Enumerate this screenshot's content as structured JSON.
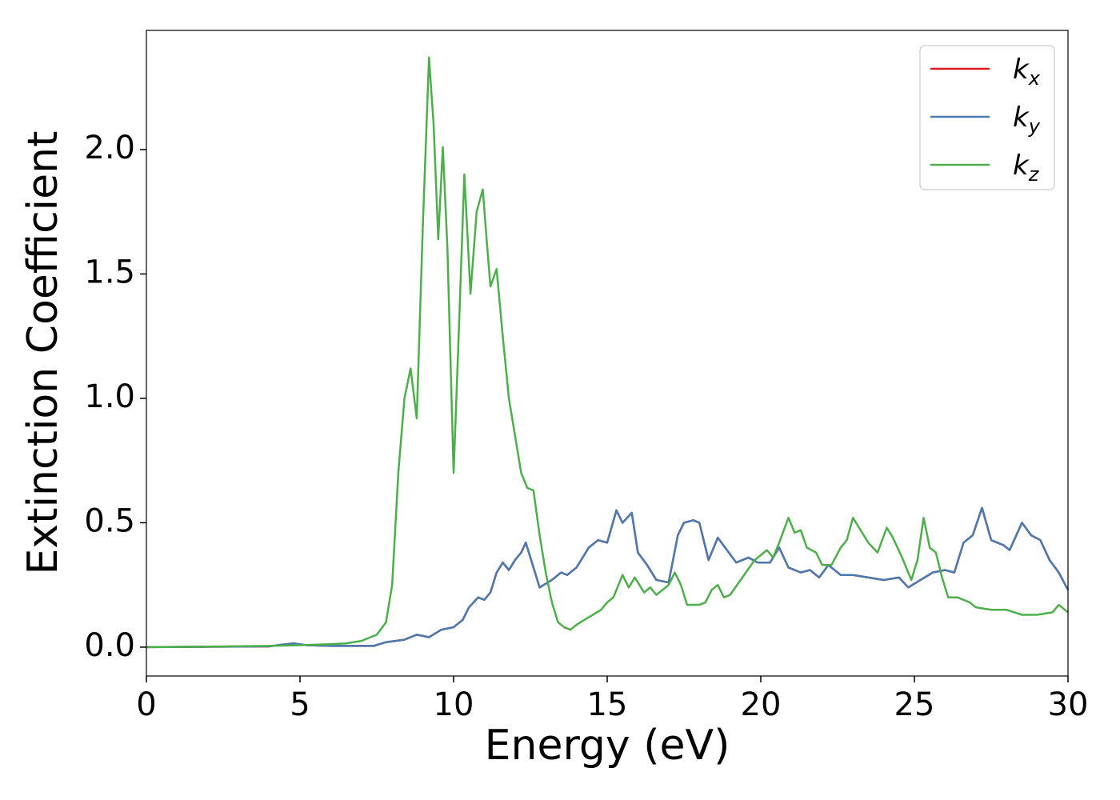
{
  "chart_data": {
    "type": "line",
    "x_label": "Energy (eV)",
    "y_label": "Extinction Coefficient",
    "xlim": [
      0,
      30
    ],
    "ylim": [
      -0.116,
      2.479
    ],
    "xticks": [
      0,
      5,
      10,
      15,
      20,
      25,
      30
    ],
    "yticks": [
      {
        "value": 0,
        "label": "0.0"
      },
      {
        "value": 0.5,
        "label": "0.5"
      },
      {
        "value": 1,
        "label": "1.0"
      },
      {
        "value": 1.5,
        "label": "1.5"
      },
      {
        "value": 2,
        "label": "2.0"
      }
    ],
    "legend": "upper right",
    "series": [
      {
        "name": "kx",
        "color": "#e41a1c",
        "x": [
          0,
          4,
          4.4,
          4.8,
          5.2,
          6,
          7.4,
          7.8,
          8.4,
          8.8,
          9.2,
          9.6,
          10,
          10.3,
          10.5,
          10.8,
          11.0,
          11.2,
          11.4,
          11.6,
          11.8,
          12.0,
          12.2,
          12.35,
          12.5,
          12.8,
          13.2,
          13.5,
          13.7,
          14.0,
          14.4,
          14.7,
          15.0,
          15.3,
          15.5,
          15.8,
          16.0,
          16.3,
          16.6,
          17.0,
          17.3,
          17.5,
          17.8,
          18.0,
          18.3,
          18.6,
          18.9,
          19.2,
          19.6,
          19.9,
          20.3,
          20.6,
          20.9,
          21.3,
          21.6,
          21.9,
          22.2,
          22.6,
          23.0,
          23.5,
          24.0,
          24.5,
          24.8,
          25.2,
          25.6,
          26.0,
          26.3,
          26.6,
          26.9,
          27.2,
          27.5,
          27.9,
          28.1,
          28.5,
          28.8,
          29.1,
          29.4,
          29.7,
          30
        ],
        "values": [
          0,
          0.003,
          0.01,
          0.015,
          0.008,
          0.005,
          0.005,
          0.02,
          0.03,
          0.05,
          0.04,
          0.07,
          0.08,
          0.11,
          0.16,
          0.2,
          0.19,
          0.22,
          0.3,
          0.34,
          0.31,
          0.35,
          0.38,
          0.42,
          0.36,
          0.24,
          0.27,
          0.3,
          0.29,
          0.32,
          0.4,
          0.43,
          0.42,
          0.55,
          0.5,
          0.54,
          0.38,
          0.33,
          0.27,
          0.26,
          0.45,
          0.5,
          0.51,
          0.5,
          0.35,
          0.44,
          0.39,
          0.34,
          0.36,
          0.34,
          0.34,
          0.4,
          0.32,
          0.3,
          0.31,
          0.28,
          0.33,
          0.29,
          0.29,
          0.28,
          0.27,
          0.28,
          0.24,
          0.27,
          0.3,
          0.31,
          0.3,
          0.42,
          0.45,
          0.56,
          0.43,
          0.41,
          0.39,
          0.5,
          0.45,
          0.43,
          0.35,
          0.3,
          0.23
        ]
      },
      {
        "name": "ky",
        "color": "#4a7ab0",
        "x": [
          0,
          4,
          4.4,
          4.8,
          5.2,
          6,
          7.4,
          7.8,
          8.4,
          8.8,
          9.2,
          9.6,
          10,
          10.3,
          10.5,
          10.8,
          11.0,
          11.2,
          11.4,
          11.6,
          11.8,
          12.0,
          12.2,
          12.35,
          12.5,
          12.8,
          13.2,
          13.5,
          13.7,
          14.0,
          14.4,
          14.7,
          15.0,
          15.3,
          15.5,
          15.8,
          16.0,
          16.3,
          16.6,
          17.0,
          17.3,
          17.5,
          17.8,
          18.0,
          18.3,
          18.6,
          18.9,
          19.2,
          19.6,
          19.9,
          20.3,
          20.6,
          20.9,
          21.3,
          21.6,
          21.9,
          22.2,
          22.6,
          23.0,
          23.5,
          24.0,
          24.5,
          24.8,
          25.2,
          25.6,
          26.0,
          26.3,
          26.6,
          26.9,
          27.2,
          27.5,
          27.9,
          28.1,
          28.5,
          28.8,
          29.1,
          29.4,
          29.7,
          30
        ],
        "values": [
          0,
          0.003,
          0.01,
          0.015,
          0.008,
          0.005,
          0.005,
          0.02,
          0.03,
          0.05,
          0.04,
          0.07,
          0.08,
          0.11,
          0.16,
          0.2,
          0.19,
          0.22,
          0.3,
          0.34,
          0.31,
          0.35,
          0.38,
          0.42,
          0.36,
          0.24,
          0.27,
          0.3,
          0.29,
          0.32,
          0.4,
          0.43,
          0.42,
          0.55,
          0.5,
          0.54,
          0.38,
          0.33,
          0.27,
          0.26,
          0.45,
          0.5,
          0.51,
          0.5,
          0.35,
          0.44,
          0.39,
          0.34,
          0.36,
          0.34,
          0.34,
          0.4,
          0.32,
          0.3,
          0.31,
          0.28,
          0.33,
          0.29,
          0.29,
          0.28,
          0.27,
          0.28,
          0.24,
          0.27,
          0.3,
          0.31,
          0.3,
          0.42,
          0.45,
          0.56,
          0.43,
          0.41,
          0.39,
          0.5,
          0.45,
          0.43,
          0.35,
          0.3,
          0.23
        ]
      },
      {
        "name": "kz",
        "color": "#4daf4a",
        "x": [
          0,
          2,
          4,
          5,
          6,
          6.5,
          7,
          7.5,
          7.8,
          8.0,
          8.2,
          8.4,
          8.6,
          8.8,
          9.0,
          9.2,
          9.35,
          9.5,
          9.65,
          9.8,
          10.0,
          10.15,
          10.35,
          10.55,
          10.75,
          10.95,
          11.1,
          11.2,
          11.4,
          11.6,
          11.8,
          12.0,
          12.2,
          12.4,
          12.6,
          12.8,
          13.0,
          13.2,
          13.4,
          13.6,
          13.8,
          14.0,
          14.4,
          14.8,
          15.0,
          15.2,
          15.5,
          15.7,
          15.9,
          16.2,
          16.4,
          16.6,
          17.0,
          17.2,
          17.4,
          17.6,
          18.0,
          18.2,
          18.4,
          18.6,
          18.8,
          19.0,
          19.4,
          19.8,
          20.0,
          20.2,
          20.4,
          20.6,
          20.9,
          21.1,
          21.3,
          21.5,
          21.8,
          22.0,
          22.3,
          22.6,
          22.8,
          23.0,
          23.2,
          23.5,
          23.8,
          24.1,
          24.3,
          24.6,
          24.9,
          25.1,
          25.3,
          25.5,
          25.7,
          25.9,
          26.1,
          26.4,
          26.8,
          27.0,
          27.5,
          28.0,
          28.5,
          29.0,
          29.5,
          29.7,
          30
        ],
        "values": [
          0,
          0.002,
          0.005,
          0.008,
          0.012,
          0.015,
          0.025,
          0.05,
          0.1,
          0.25,
          0.7,
          1.0,
          1.12,
          0.92,
          1.7,
          2.37,
          2.1,
          1.64,
          2.01,
          1.6,
          0.7,
          1.2,
          1.9,
          1.42,
          1.75,
          1.84,
          1.6,
          1.45,
          1.52,
          1.25,
          1.0,
          0.85,
          0.7,
          0.64,
          0.63,
          0.45,
          0.3,
          0.18,
          0.1,
          0.08,
          0.07,
          0.09,
          0.12,
          0.15,
          0.18,
          0.2,
          0.29,
          0.24,
          0.28,
          0.22,
          0.24,
          0.21,
          0.25,
          0.3,
          0.25,
          0.17,
          0.17,
          0.18,
          0.23,
          0.25,
          0.2,
          0.21,
          0.28,
          0.35,
          0.37,
          0.39,
          0.36,
          0.42,
          0.52,
          0.46,
          0.47,
          0.4,
          0.38,
          0.33,
          0.33,
          0.4,
          0.43,
          0.52,
          0.48,
          0.42,
          0.38,
          0.48,
          0.44,
          0.36,
          0.27,
          0.35,
          0.52,
          0.4,
          0.38,
          0.28,
          0.2,
          0.2,
          0.18,
          0.16,
          0.15,
          0.15,
          0.13,
          0.13,
          0.14,
          0.17,
          0.14
        ]
      }
    ]
  }
}
